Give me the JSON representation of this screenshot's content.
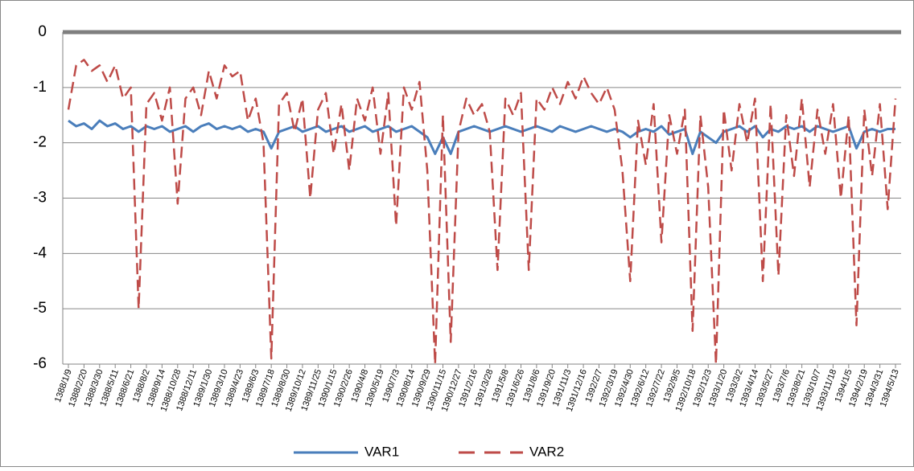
{
  "chart_data": {
    "type": "line",
    "categories": [
      "1388/1/9",
      null,
      "1388/2/20",
      null,
      "1388/3/30",
      null,
      "1388/5/11",
      null,
      "1388/6/21",
      null,
      "1388/8/2",
      null,
      "1388/9/14",
      null,
      "1388/10/28",
      null,
      "1388/12/11",
      null,
      "1389/1/30",
      null,
      "1389/3/10",
      null,
      "1389/4/23",
      null,
      "1389/6/3",
      null,
      "1389/7/18",
      null,
      "1389/8/30",
      null,
      "1389/10/12",
      null,
      "1389/11/25",
      null,
      "1390/1/15",
      null,
      "1390/2/26",
      null,
      "1390/4/8",
      null,
      "1390/5/19",
      null,
      "1390/7/3",
      null,
      "1390/8/14",
      null,
      "1390/9/29",
      null,
      "1390/11/15",
      null,
      "1390/12/27",
      null,
      "1391/2/16",
      null,
      "1391/3/28",
      null,
      "1391/5/8",
      null,
      "1391/6/26",
      null,
      "1391/8/6",
      null,
      "1391/9/20",
      null,
      "1391/11/3",
      null,
      "1391/12/16",
      null,
      "1392/2/7",
      null,
      "1392/3/19",
      null,
      "1392/4/30",
      null,
      "1392/6/12",
      null,
      "1392/7/22",
      null,
      "1392/9/5",
      null,
      "1392/10/18",
      null,
      "1392/12/3",
      null,
      "1393/1/20",
      null,
      "1393/3/2",
      null,
      "1393/4/14",
      null,
      "1393/5/27",
      null,
      "1393/7/6",
      null,
      "1393/8/21",
      null,
      "1393/10/7",
      null,
      "1393/11/18",
      null,
      "1394/1/5",
      null,
      "1394/2/19",
      null,
      "1394/3/31",
      null,
      "1394/5/13"
    ],
    "series": [
      {
        "name": "VAR1",
        "color": "#4a7ebb",
        "dash": false,
        "values": [
          -1.6,
          -1.7,
          -1.65,
          -1.75,
          -1.6,
          -1.7,
          -1.65,
          -1.75,
          -1.7,
          -1.8,
          -1.7,
          -1.75,
          -1.7,
          -1.8,
          -1.75,
          -1.7,
          -1.8,
          -1.7,
          -1.65,
          -1.75,
          -1.7,
          -1.75,
          -1.7,
          -1.8,
          -1.75,
          -1.8,
          -2.1,
          -1.8,
          -1.75,
          -1.7,
          -1.8,
          -1.75,
          -1.7,
          -1.8,
          -1.75,
          -1.7,
          -1.8,
          -1.75,
          -1.7,
          -1.8,
          -1.75,
          -1.7,
          -1.8,
          -1.75,
          -1.7,
          -1.8,
          -1.9,
          -2.2,
          -1.9,
          -2.2,
          -1.8,
          -1.75,
          -1.7,
          -1.75,
          -1.8,
          -1.75,
          -1.7,
          -1.75,
          -1.8,
          -1.75,
          -1.7,
          -1.75,
          -1.8,
          -1.7,
          -1.75,
          -1.8,
          -1.75,
          -1.7,
          -1.75,
          -1.8,
          -1.75,
          -1.8,
          -1.9,
          -1.8,
          -1.75,
          -1.8,
          -1.7,
          -1.85,
          -1.8,
          -1.75,
          -2.2,
          -1.8,
          -1.9,
          -2.0,
          -1.8,
          -1.75,
          -1.7,
          -1.8,
          -1.7,
          -1.9,
          -1.75,
          -1.8,
          -1.7,
          -1.75,
          -1.7,
          -1.8,
          -1.7,
          -1.75,
          -1.8,
          -1.75,
          -1.7,
          -2.1,
          -1.8,
          -1.75,
          -1.8,
          -1.75,
          -1.75
        ]
      },
      {
        "name": "VAR2",
        "color": "#be4b48",
        "dash": true,
        "values": [
          -1.4,
          -0.6,
          -0.5,
          -0.7,
          -0.6,
          -0.9,
          -0.6,
          -1.2,
          -1.0,
          -5.0,
          -1.3,
          -1.1,
          -1.6,
          -1.0,
          -3.1,
          -1.2,
          -1.0,
          -1.5,
          -0.7,
          -1.2,
          -0.6,
          -0.8,
          -0.7,
          -1.6,
          -1.2,
          -2.0,
          -5.9,
          -1.3,
          -1.1,
          -1.8,
          -1.2,
          -3.0,
          -1.4,
          -1.1,
          -2.2,
          -1.3,
          -2.5,
          -1.2,
          -1.6,
          -1.0,
          -2.2,
          -1.1,
          -3.5,
          -1.0,
          -1.4,
          -0.9,
          -2.5,
          -6.0,
          -1.5,
          -5.6,
          -1.8,
          -1.2,
          -1.5,
          -1.3,
          -1.8,
          -4.3,
          -1.2,
          -1.5,
          -1.1,
          -4.3,
          -1.2,
          -1.4,
          -1.0,
          -1.3,
          -0.9,
          -1.2,
          -0.8,
          -1.1,
          -1.3,
          -1.0,
          -1.4,
          -2.5,
          -4.5,
          -1.6,
          -2.4,
          -1.3,
          -3.8,
          -1.5,
          -2.2,
          -1.4,
          -5.4,
          -1.5,
          -2.8,
          -6.0,
          -1.4,
          -2.5,
          -1.3,
          -2.0,
          -1.2,
          -4.5,
          -1.3,
          -4.4,
          -1.5,
          -2.6,
          -1.2,
          -2.8,
          -1.4,
          -2.2,
          -1.3,
          -3.0,
          -1.5,
          -5.3,
          -1.4,
          -2.6,
          -1.3,
          -3.2,
          -1.2
        ]
      }
    ],
    "ylim": [
      -6,
      0
    ],
    "yticks": [
      0,
      -1,
      -2,
      -3,
      -4,
      -5,
      -6
    ],
    "grid": true,
    "legend": "bottom"
  }
}
